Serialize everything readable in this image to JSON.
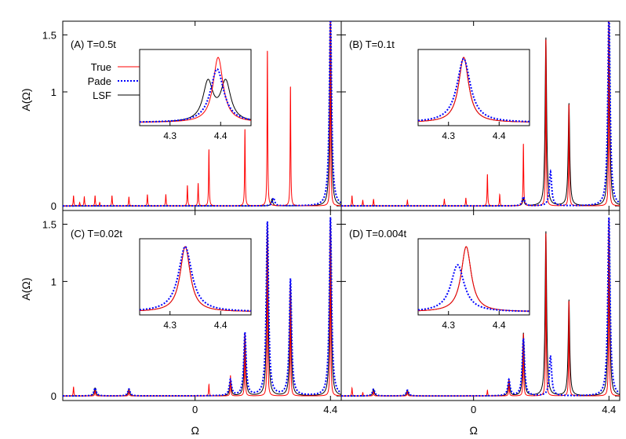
{
  "chart_data": {
    "type": "line",
    "layout": "2x2 panels sharing axes, each with an inset zoom",
    "xlabel": "Ω",
    "ylabel": "A(Ω)",
    "x_ticks": [
      {
        "value": 0,
        "label": "0"
      },
      {
        "value": 4.4,
        "label": "4.4"
      }
    ],
    "xlim": [
      -4.3,
      4.75
    ],
    "ylim": [
      -0.04,
      1.62
    ],
    "y_ticks": [
      {
        "value": 0,
        "label": "0"
      },
      {
        "value": 1,
        "label": "1"
      },
      {
        "value": 1.5,
        "label": "1.5"
      }
    ],
    "inset_xlim": [
      4.24,
      4.46
    ],
    "inset_x_ticks": [
      {
        "value": 4.3,
        "label": "4.3"
      },
      {
        "value": 4.4,
        "label": "4.4"
      }
    ],
    "legend": {
      "placement": "top-left of panel A",
      "entries": [
        {
          "label": "True",
          "color": "#ff0000",
          "style": "solid"
        },
        {
          "label": "Pade",
          "color": "#0000ff",
          "style": "dotted"
        },
        {
          "label": "LSF",
          "color": "#000000",
          "style": "solid"
        }
      ]
    },
    "colors": {
      "true": "#ff0000",
      "pade": "#0000ff",
      "lsf": "#000000"
    },
    "spike_positions": [
      -3.95,
      -3.75,
      -3.6,
      -3.25,
      -2.7,
      -2.15,
      -1.55,
      -0.95,
      -0.25,
      0.1,
      0.45
    ],
    "panels": [
      {
        "label": "(A) T=0.5t",
        "true_peaks": [
          {
            "x": -3.95,
            "h": 0.09
          },
          {
            "x": -3.75,
            "h": 0.03
          },
          {
            "x": -3.6,
            "h": 0.08
          },
          {
            "x": -3.25,
            "h": 0.09
          },
          {
            "x": -3.1,
            "h": 0.03
          },
          {
            "x": -2.7,
            "h": 0.09
          },
          {
            "x": -2.15,
            "h": 0.08
          },
          {
            "x": -1.55,
            "h": 0.1
          },
          {
            "x": -0.95,
            "h": 0.1
          },
          {
            "x": -0.25,
            "h": 0.18
          },
          {
            "x": 0.1,
            "h": 0.2
          },
          {
            "x": 0.45,
            "h": 0.5
          },
          {
            "x": 1.62,
            "h": 0.68
          },
          {
            "x": 2.35,
            "h": 1.38
          },
          {
            "x": 3.1,
            "h": 1.06
          },
          {
            "x": 4.4,
            "h": 1.7
          }
        ],
        "lsf_peaks": [
          {
            "x": 4.4,
            "h": 1.7
          },
          {
            "x": 2.5,
            "h": 0.06
          }
        ],
        "pade_peaks": [
          {
            "x": 4.4,
            "h": 1.7
          },
          {
            "x": 2.55,
            "h": 0.07
          }
        ],
        "inset": {
          "true": [
            {
              "x": 4.395,
              "h": 1.0
            }
          ],
          "pade": [
            {
              "x": 4.393,
              "h": 0.82
            }
          ],
          "lsf": [
            {
              "x": 4.375,
              "h": 0.6
            },
            {
              "x": 4.41,
              "h": 0.6
            }
          ]
        }
      },
      {
        "label": "(B) T=0.1t",
        "true_peaks": [
          {
            "x": -3.95,
            "h": 0.09
          },
          {
            "x": -3.6,
            "h": 0.05
          },
          {
            "x": -3.25,
            "h": 0.06
          },
          {
            "x": -2.15,
            "h": 0.05
          },
          {
            "x": -0.95,
            "h": 0.06
          },
          {
            "x": -0.25,
            "h": 0.07
          },
          {
            "x": 0.45,
            "h": 0.28
          },
          {
            "x": 0.85,
            "h": 0.1
          },
          {
            "x": 1.62,
            "h": 0.55
          },
          {
            "x": 2.35,
            "h": 1.48
          },
          {
            "x": 3.1,
            "h": 0.9
          },
          {
            "x": 4.4,
            "h": 1.7
          }
        ],
        "lsf_peaks": [
          {
            "x": 1.62,
            "h": 0.06
          },
          {
            "x": 2.35,
            "h": 1.48
          },
          {
            "x": 3.1,
            "h": 0.9
          },
          {
            "x": 4.4,
            "h": 1.7
          }
        ],
        "pade_peaks": [
          {
            "x": 1.62,
            "h": 0.08
          },
          {
            "x": 2.5,
            "h": 0.3
          },
          {
            "x": 4.4,
            "h": 1.7
          }
        ],
        "inset": {
          "true": [
            {
              "x": 4.33,
              "h": 1.0
            }
          ],
          "pade": [
            {
              "x": 4.33,
              "h": 0.98
            }
          ],
          "lsf": [
            {
              "x": 4.33,
              "h": 1.0
            }
          ]
        }
      },
      {
        "label": "(C) T=0.02t",
        "true_peaks": [
          {
            "x": -3.95,
            "h": 0.08
          },
          {
            "x": -3.25,
            "h": 0.05
          },
          {
            "x": -2.15,
            "h": 0.05
          },
          {
            "x": 0.45,
            "h": 0.1
          },
          {
            "x": 1.15,
            "h": 0.18
          },
          {
            "x": 1.62,
            "h": 0.55
          },
          {
            "x": 2.35,
            "h": 1.52
          },
          {
            "x": 3.1,
            "h": 0.98
          },
          {
            "x": 4.4,
            "h": 1.56
          }
        ],
        "lsf_peaks": [
          {
            "x": -3.25,
            "h": 0.07
          },
          {
            "x": -2.15,
            "h": 0.06
          },
          {
            "x": 1.15,
            "h": 0.14
          },
          {
            "x": 1.62,
            "h": 0.55
          },
          {
            "x": 2.35,
            "h": 1.52
          },
          {
            "x": 3.1,
            "h": 0.98
          },
          {
            "x": 4.4,
            "h": 1.56
          }
        ],
        "pade_peaks": [
          {
            "x": -3.25,
            "h": 0.07
          },
          {
            "x": -2.15,
            "h": 0.06
          },
          {
            "x": 1.15,
            "h": 0.14
          },
          {
            "x": 1.62,
            "h": 0.55
          },
          {
            "x": 2.35,
            "h": 1.52
          },
          {
            "x": 3.1,
            "h": 1.02
          },
          {
            "x": 4.4,
            "h": 1.56
          }
        ],
        "inset": {
          "true": [
            {
              "x": 4.33,
              "h": 1.0
            }
          ],
          "pade": [
            {
              "x": 4.33,
              "h": 1.0
            }
          ],
          "lsf": [
            {
              "x": 4.33,
              "h": 1.0
            }
          ]
        }
      },
      {
        "label": "(D) T=0.004t",
        "true_peaks": [
          {
            "x": -3.95,
            "h": 0.07
          },
          {
            "x": -3.6,
            "h": 0.03
          },
          {
            "x": -3.25,
            "h": 0.04
          },
          {
            "x": -2.15,
            "h": 0.04
          },
          {
            "x": 0.45,
            "h": 0.05
          },
          {
            "x": 1.15,
            "h": 0.14
          },
          {
            "x": 1.62,
            "h": 0.55
          },
          {
            "x": 2.35,
            "h": 1.44
          },
          {
            "x": 3.1,
            "h": 0.84
          },
          {
            "x": 4.4,
            "h": 1.56
          }
        ],
        "lsf_peaks": [
          {
            "x": -3.25,
            "h": 0.06
          },
          {
            "x": -2.15,
            "h": 0.05
          },
          {
            "x": 1.15,
            "h": 0.14
          },
          {
            "x": 1.62,
            "h": 0.55
          },
          {
            "x": 2.35,
            "h": 1.44
          },
          {
            "x": 3.1,
            "h": 0.84
          },
          {
            "x": 4.4,
            "h": 1.56
          }
        ],
        "pade_peaks": [
          {
            "x": -3.25,
            "h": 0.06
          },
          {
            "x": -2.15,
            "h": 0.05
          },
          {
            "x": 1.15,
            "h": 0.14
          },
          {
            "x": 1.62,
            "h": 0.5
          },
          {
            "x": 2.5,
            "h": 0.35
          },
          {
            "x": 4.4,
            "h": 1.56
          }
        ],
        "inset": {
          "true": [
            {
              "x": 4.335,
              "h": 1.0
            }
          ],
          "pade": [
            {
              "x": 4.318,
              "h": 0.72
            }
          ],
          "lsf": [
            {
              "x": 4.335,
              "h": 1.0
            }
          ]
        }
      }
    ]
  }
}
